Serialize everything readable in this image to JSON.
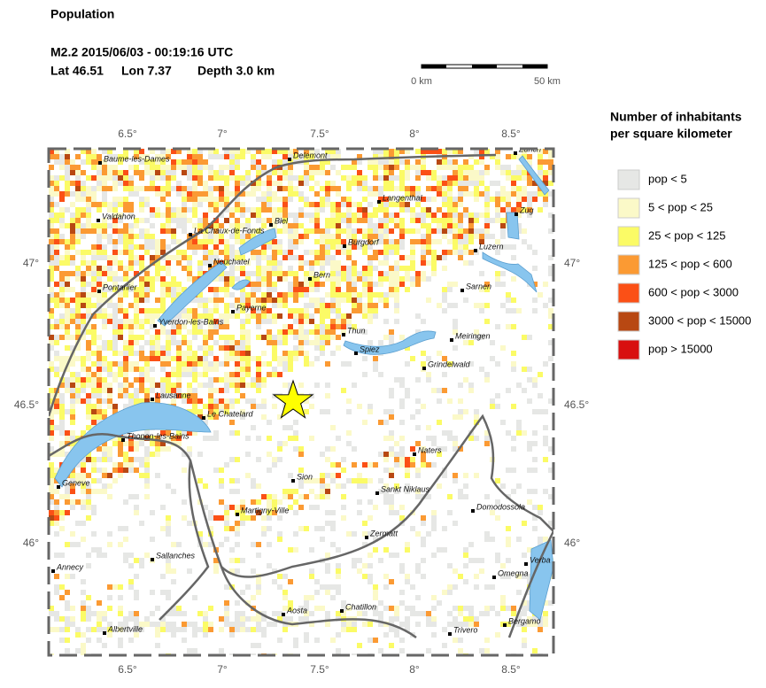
{
  "header": {
    "title": "Population",
    "event": "M2.2  2015/06/03 - 00:19:16 UTC",
    "lat": "Lat 46.51",
    "lon": "Lon  7.37",
    "depth": "Depth  3.0 km"
  },
  "scale": {
    "start": "0 km",
    "end": "50 km"
  },
  "map": {
    "lon_ticks": [
      "6.5°",
      "7°",
      "7.5°",
      "8°",
      "8.5°"
    ],
    "lat_ticks": [
      "47°",
      "46.5°",
      "46°"
    ],
    "cities": [
      "Baume-les-Dames",
      "Delemont",
      "Zurich",
      "Langenthal",
      "Valdahon",
      "La Chaux-de-Fonds",
      "Biel",
      "Zug",
      "Burgdorf",
      "Luzern",
      "Neuchatel",
      "Bern",
      "Pontarlier",
      "Sarnen",
      "Payerne",
      "Yverdon-les-Bains",
      "Thun",
      "Meiringen",
      "Spiez",
      "Grindelwald",
      "Lausanne",
      "Le Chatelard",
      "Thonon-les-Bains",
      "Naters",
      "Geneve",
      "Sion",
      "Sankt Niklaus",
      "Martigny-Ville",
      "Domodossola",
      "Zermatt",
      "Annecy",
      "Sallanches",
      "Verba",
      "Omegna",
      "Aosta",
      "Chatillon",
      "Albertville",
      "Trivero",
      "Bergamo"
    ]
  },
  "legend": {
    "title": [
      "Number of inhabitants",
      "per square kilometer"
    ],
    "items": [
      {
        "label": "pop < 5",
        "color": "#e6e7e5"
      },
      {
        "label": "5 < pop < 25",
        "color": "#fbf9c8"
      },
      {
        "label": "25 < pop < 125",
        "color": "#fbfb66"
      },
      {
        "label": "125 < pop < 600",
        "color": "#fb9a33"
      },
      {
        "label": "600 < pop < 3000",
        "color": "#fb5016"
      },
      {
        "label": "3000 < pop < 15000",
        "color": "#b84812"
      },
      {
        "label": "pop > 15000",
        "color": "#d80f0f"
      }
    ]
  }
}
